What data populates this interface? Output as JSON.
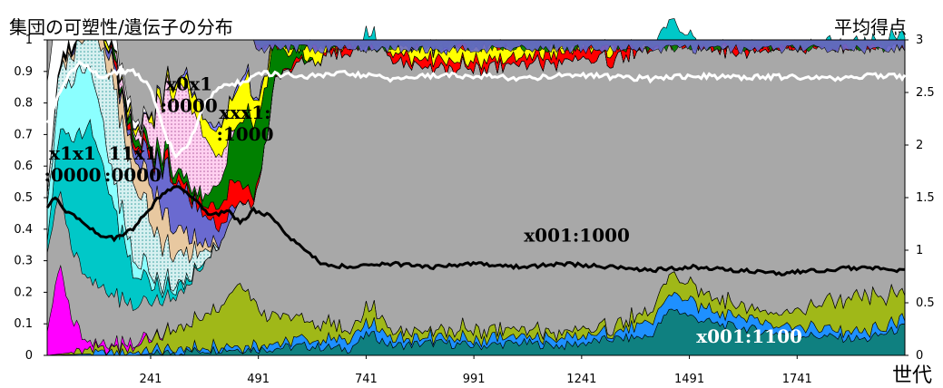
{
  "chart_data": {
    "type": "area",
    "title": "集団の可塑性/遺伝子の分布",
    "y2label": "平均得点",
    "xlabel": "世代",
    "x_ticks": [
      241,
      491,
      741,
      991,
      1241,
      1491,
      1741
    ],
    "xlim": [
      1,
      1991
    ],
    "y_ticks": [
      "0",
      "0.1",
      "0.2",
      "0.3",
      "0.4",
      "0.5",
      "0.6",
      "0.7",
      "0.8",
      "0.9",
      "1"
    ],
    "ylim": [
      0,
      1
    ],
    "y2_ticks": [
      "0",
      "0.5",
      "1",
      "1.5",
      "2",
      "2.5",
      "3"
    ],
    "y2lim": [
      0,
      3
    ],
    "annotations": [
      {
        "label": "x1x1\n:0000",
        "x": 60,
        "y": 0.62
      },
      {
        "label": "11x1\n:0000",
        "x": 200,
        "y": 0.62
      },
      {
        "label": "x0x1\n:0000",
        "x": 330,
        "y": 0.84
      },
      {
        "label": "xxx1:\n:1000",
        "x": 460,
        "y": 0.75
      },
      {
        "label": "x001:1000",
        "x": 1230,
        "y": 0.36
      },
      {
        "label": "x001:1100",
        "x": 1630,
        "y": 0.04
      }
    ],
    "series": [
      {
        "name": "x001:1100",
        "color": "#0f8080",
        "x": [
          1,
          100,
          200,
          300,
          400,
          500,
          600,
          700,
          750,
          800,
          900,
          1000,
          1100,
          1200,
          1300,
          1400,
          1450,
          1500,
          1550,
          1600,
          1650,
          1700,
          1800,
          1900,
          1991
        ],
        "values": [
          0.0,
          0.0,
          0.0,
          0.01,
          0.02,
          0.02,
          0.03,
          0.02,
          0.07,
          0.03,
          0.04,
          0.03,
          0.04,
          0.03,
          0.05,
          0.06,
          0.15,
          0.12,
          0.1,
          0.09,
          0.08,
          0.07,
          0.06,
          0.05,
          0.09
        ]
      },
      {
        "name": "",
        "color": "#1e90ff",
        "x": [
          1,
          200,
          400,
          600,
          750,
          900,
          1100,
          1300,
          1450,
          1550,
          1700,
          1900,
          1991
        ],
        "values": [
          0.0,
          0.01,
          0.01,
          0.02,
          0.03,
          0.02,
          0.02,
          0.02,
          0.05,
          0.04,
          0.03,
          0.02,
          0.02
        ]
      },
      {
        "name": "",
        "color": "#a0b818",
        "x": [
          1,
          200,
          300,
          400,
          450,
          500,
          600,
          700,
          750,
          800,
          900,
          1000,
          1100,
          1200,
          1300,
          1400,
          1450,
          1500,
          1600,
          1700,
          1800,
          1900,
          1991
        ],
        "values": [
          0.0,
          0.02,
          0.06,
          0.12,
          0.2,
          0.1,
          0.06,
          0.03,
          0.05,
          0.03,
          0.02,
          0.03,
          0.02,
          0.02,
          0.02,
          0.03,
          0.06,
          0.05,
          0.04,
          0.03,
          0.08,
          0.11,
          0.08
        ]
      },
      {
        "name": "",
        "color": "#ff00ff",
        "x": [
          1,
          30,
          60,
          100,
          300,
          1991
        ],
        "values": [
          0.08,
          0.28,
          0.1,
          0.02,
          0.0,
          0.0
        ]
      },
      {
        "name": "",
        "color": "#a0a0a0",
        "x": [
          1,
          100,
          200,
          300,
          400,
          480,
          530,
          600,
          700,
          800,
          900,
          1000,
          1100,
          1200,
          1300,
          1400,
          1500,
          1600,
          1700,
          1800,
          1900,
          1991
        ],
        "values": [
          0.25,
          0.2,
          0.12,
          0.1,
          0.2,
          0.3,
          0.75,
          0.82,
          0.88,
          0.86,
          0.83,
          0.83,
          0.84,
          0.86,
          0.85,
          0.83,
          0.78,
          0.8,
          0.84,
          0.82,
          0.8,
          0.82
        ]
      },
      {
        "name": "",
        "color": "#00c8c8",
        "x": [
          1,
          50,
          100,
          150,
          200,
          250,
          300,
          400,
          500,
          1991
        ],
        "values": [
          0.05,
          0.3,
          0.5,
          0.3,
          0.1,
          0.05,
          0.02,
          0.0,
          0.0,
          0.0
        ]
      },
      {
        "name": "x1x1:0000",
        "color": "#8bffff",
        "x": [
          1,
          40,
          80,
          120,
          160,
          200,
          260,
          350,
          1991
        ],
        "values": [
          0.1,
          0.15,
          0.2,
          0.15,
          0.08,
          0.05,
          0.02,
          0.0,
          0.0
        ]
      },
      {
        "name": "11x1:0000",
        "color": "#bfe6e6",
        "x": [
          1,
          100,
          150,
          200,
          250,
          300,
          350,
          400,
          1991
        ],
        "values": [
          0.05,
          0.1,
          0.3,
          0.25,
          0.15,
          0.1,
          0.05,
          0.0,
          0.0
        ]
      },
      {
        "name": "",
        "color": "#e8c8a0",
        "x": [
          1,
          150,
          250,
          330,
          400,
          1991
        ],
        "values": [
          0.0,
          0.05,
          0.12,
          0.05,
          0.0,
          0.0
        ]
      },
      {
        "name": "",
        "color": "#6a6ad0",
        "x": [
          1,
          200,
          280,
          340,
          400,
          460,
          1991
        ],
        "values": [
          0.0,
          0.02,
          0.15,
          0.12,
          0.05,
          0.0,
          0.0
        ]
      },
      {
        "name": "",
        "color": "#ff0000",
        "x": [
          1,
          350,
          420,
          460,
          500,
          600,
          700,
          800,
          900,
          1000,
          1100,
          1200,
          1300,
          1400,
          1500,
          1600,
          1700,
          1800,
          1900,
          1991
        ],
        "values": [
          0.0,
          0.02,
          0.08,
          0.05,
          0.0,
          0.01,
          0.02,
          0.02,
          0.03,
          0.02,
          0.02,
          0.03,
          0.04,
          0.03,
          0.02,
          0.03,
          0.02,
          0.03,
          0.02,
          0.02
        ]
      },
      {
        "name": "xxx1:1000",
        "color": "#008000",
        "x": [
          1,
          380,
          420,
          470,
          520,
          560,
          620,
          1991
        ],
        "values": [
          0.0,
          0.03,
          0.12,
          0.25,
          0.15,
          0.05,
          0.0,
          0.0
        ]
      },
      {
        "name": "x0x1:0000",
        "color": "#ffaaee",
        "x": [
          1,
          220,
          280,
          320,
          360,
          400,
          440,
          1991
        ],
        "values": [
          0.0,
          0.02,
          0.2,
          0.3,
          0.2,
          0.08,
          0.0,
          0.0
        ]
      },
      {
        "name": "",
        "color": "#ffff00",
        "x": [
          1,
          300,
          400,
          450,
          500,
          550,
          600,
          700,
          800,
          900,
          1000,
          1100,
          1200,
          1300,
          1400,
          1500,
          1600,
          1700,
          1800,
          1900,
          1991
        ],
        "values": [
          0.0,
          0.02,
          0.08,
          0.12,
          0.05,
          0.02,
          0.05,
          0.06,
          0.04,
          0.04,
          0.06,
          0.05,
          0.05,
          0.04,
          0.06,
          0.04,
          0.05,
          0.06,
          0.04,
          0.05,
          0.04
        ]
      },
      {
        "name": "",
        "color": "#8080ff",
        "x": [
          1,
          600,
          800,
          1000,
          1200,
          1400,
          1600,
          1800,
          1991
        ],
        "values": [
          0.0,
          0.01,
          0.01,
          0.02,
          0.01,
          0.02,
          0.01,
          0.01,
          0.02
        ]
      },
      {
        "name": "",
        "color": "#ffffff",
        "x": [
          1,
          50,
          100,
          150,
          200,
          260,
          300,
          1991
        ],
        "values": [
          0.35,
          0.25,
          0.1,
          0.05,
          0.02,
          0.0,
          0.0,
          0.0
        ]
      }
    ],
    "line_series": [
      {
        "name": "",
        "color": "#ffffff",
        "axis": "right",
        "x": [
          1,
          40,
          80,
          120,
          160,
          200,
          240,
          280,
          300,
          330,
          360,
          400,
          450,
          500,
          600,
          700,
          800,
          900,
          1000,
          1100,
          1200,
          1300,
          1400,
          1500,
          1600,
          1700,
          1800,
          1900,
          1991
        ],
        "values": [
          2.2,
          2.6,
          2.8,
          2.65,
          2.7,
          2.7,
          2.55,
          2.05,
          1.9,
          2.0,
          2.35,
          2.55,
          2.6,
          2.68,
          2.65,
          2.68,
          2.63,
          2.66,
          2.66,
          2.63,
          2.67,
          2.65,
          2.63,
          2.66,
          2.64,
          2.65,
          2.63,
          2.66,
          2.65
        ]
      },
      {
        "name": "",
        "color": "#000000",
        "axis": "left",
        "x": [
          1,
          20,
          40,
          80,
          120,
          160,
          200,
          260,
          300,
          340,
          380,
          420,
          450,
          480,
          520,
          560,
          600,
          640,
          700,
          800,
          900,
          1000,
          1100,
          1200,
          1300,
          1400,
          1500,
          1600,
          1700,
          1800,
          1900,
          1950,
          1991
        ],
        "values": [
          0.47,
          0.5,
          0.46,
          0.43,
          0.38,
          0.37,
          0.4,
          0.5,
          0.54,
          0.5,
          0.44,
          0.46,
          0.42,
          0.46,
          0.44,
          0.38,
          0.33,
          0.29,
          0.28,
          0.29,
          0.28,
          0.29,
          0.28,
          0.29,
          0.28,
          0.27,
          0.28,
          0.27,
          0.26,
          0.27,
          0.28,
          0.27,
          0.27
        ]
      }
    ]
  },
  "colors": {
    "background": "#ffffff",
    "plot_fill": "#a8a8a8"
  }
}
